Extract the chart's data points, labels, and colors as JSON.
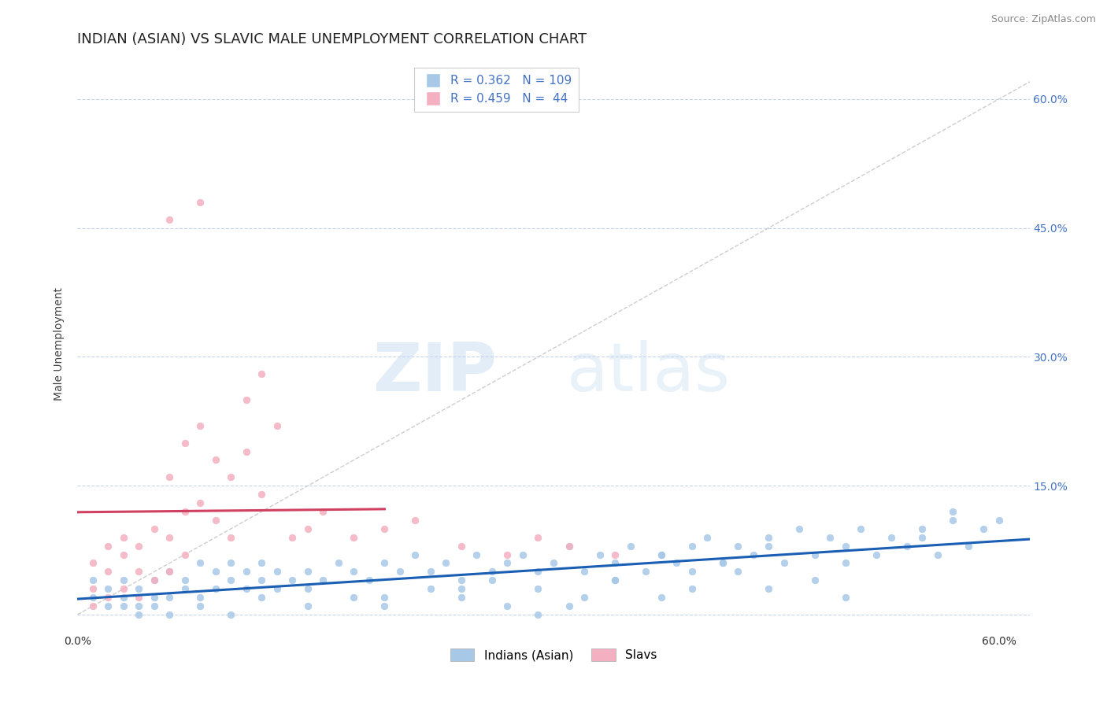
{
  "title": "INDIAN (ASIAN) VS SLAVIC MALE UNEMPLOYMENT CORRELATION CHART",
  "source_text": "Source: ZipAtlas.com",
  "ylabel": "Male Unemployment",
  "xlim": [
    0.0,
    0.62
  ],
  "ylim": [
    -0.02,
    0.65
  ],
  "blue_color": "#a8c8e8",
  "pink_color": "#f4b0c0",
  "blue_line_color": "#1a5fb4",
  "pink_line_color": "#d04060",
  "reference_line_color": "#c8c8c8",
  "grid_color": "#c8d4e8",
  "legend_R_blue": "0.362",
  "legend_N_blue": "109",
  "legend_R_pink": "0.459",
  "legend_N_pink": " 44",
  "legend_label_blue": "Indians (Asian)",
  "legend_label_pink": "Slavs",
  "watermark_zip": "ZIP",
  "watermark_atlas": "atlas",
  "title_fontsize": 13,
  "axis_label_fontsize": 10,
  "tick_fontsize": 10,
  "blue_scatter_x": [
    0.01,
    0.01,
    0.02,
    0.02,
    0.03,
    0.03,
    0.04,
    0.04,
    0.05,
    0.05,
    0.06,
    0.06,
    0.07,
    0.07,
    0.08,
    0.08,
    0.09,
    0.09,
    0.1,
    0.1,
    0.11,
    0.11,
    0.12,
    0.12,
    0.13,
    0.13,
    0.14,
    0.15,
    0.16,
    0.17,
    0.18,
    0.19,
    0.2,
    0.21,
    0.22,
    0.23,
    0.24,
    0.25,
    0.26,
    0.27,
    0.28,
    0.29,
    0.3,
    0.31,
    0.32,
    0.33,
    0.34,
    0.35,
    0.36,
    0.37,
    0.38,
    0.39,
    0.4,
    0.41,
    0.42,
    0.43,
    0.44,
    0.45,
    0.46,
    0.47,
    0.48,
    0.49,
    0.5,
    0.51,
    0.52,
    0.53,
    0.54,
    0.55,
    0.56,
    0.57,
    0.58,
    0.59,
    0.6,
    0.03,
    0.04,
    0.05,
    0.06,
    0.08,
    0.1,
    0.12,
    0.15,
    0.18,
    0.2,
    0.23,
    0.25,
    0.28,
    0.3,
    0.33,
    0.35,
    0.38,
    0.4,
    0.43,
    0.45,
    0.48,
    0.5,
    0.3,
    0.25,
    0.35,
    0.4,
    0.5,
    0.2,
    0.45,
    0.55,
    0.15,
    0.38,
    0.42,
    0.27,
    0.32,
    0.57
  ],
  "blue_scatter_y": [
    0.02,
    0.04,
    0.01,
    0.03,
    0.02,
    0.04,
    0.01,
    0.03,
    0.02,
    0.04,
    0.02,
    0.05,
    0.03,
    0.04,
    0.02,
    0.06,
    0.03,
    0.05,
    0.04,
    0.06,
    0.03,
    0.05,
    0.04,
    0.06,
    0.03,
    0.05,
    0.04,
    0.05,
    0.04,
    0.06,
    0.05,
    0.04,
    0.06,
    0.05,
    0.07,
    0.05,
    0.06,
    0.04,
    0.07,
    0.05,
    0.06,
    0.07,
    0.05,
    0.06,
    0.08,
    0.05,
    0.07,
    0.06,
    0.08,
    0.05,
    0.07,
    0.06,
    0.08,
    0.09,
    0.06,
    0.08,
    0.07,
    0.09,
    0.06,
    0.1,
    0.07,
    0.09,
    0.08,
    0.1,
    0.07,
    0.09,
    0.08,
    0.1,
    0.07,
    0.11,
    0.08,
    0.1,
    0.11,
    0.01,
    0.0,
    0.01,
    0.0,
    0.01,
    0.0,
    0.02,
    0.01,
    0.02,
    0.01,
    0.03,
    0.02,
    0.01,
    0.03,
    0.02,
    0.04,
    0.02,
    0.03,
    0.05,
    0.03,
    0.04,
    0.06,
    0.0,
    0.03,
    0.04,
    0.05,
    0.02,
    0.02,
    0.08,
    0.09,
    0.03,
    0.07,
    0.06,
    0.04,
    0.01,
    0.12
  ],
  "pink_scatter_x": [
    0.01,
    0.01,
    0.01,
    0.02,
    0.02,
    0.02,
    0.03,
    0.03,
    0.03,
    0.04,
    0.04,
    0.04,
    0.05,
    0.05,
    0.06,
    0.06,
    0.06,
    0.07,
    0.07,
    0.07,
    0.08,
    0.08,
    0.09,
    0.09,
    0.1,
    0.1,
    0.11,
    0.11,
    0.12,
    0.12,
    0.13,
    0.14,
    0.15,
    0.16,
    0.18,
    0.2,
    0.22,
    0.25,
    0.28,
    0.3,
    0.32,
    0.35,
    0.06,
    0.08
  ],
  "pink_scatter_y": [
    0.01,
    0.03,
    0.06,
    0.02,
    0.05,
    0.08,
    0.03,
    0.07,
    0.09,
    0.02,
    0.05,
    0.08,
    0.04,
    0.1,
    0.05,
    0.09,
    0.16,
    0.07,
    0.12,
    0.2,
    0.13,
    0.22,
    0.11,
    0.18,
    0.09,
    0.16,
    0.25,
    0.19,
    0.14,
    0.28,
    0.22,
    0.09,
    0.1,
    0.12,
    0.09,
    0.1,
    0.11,
    0.08,
    0.07,
    0.09,
    0.08,
    0.07,
    0.46,
    0.48
  ]
}
